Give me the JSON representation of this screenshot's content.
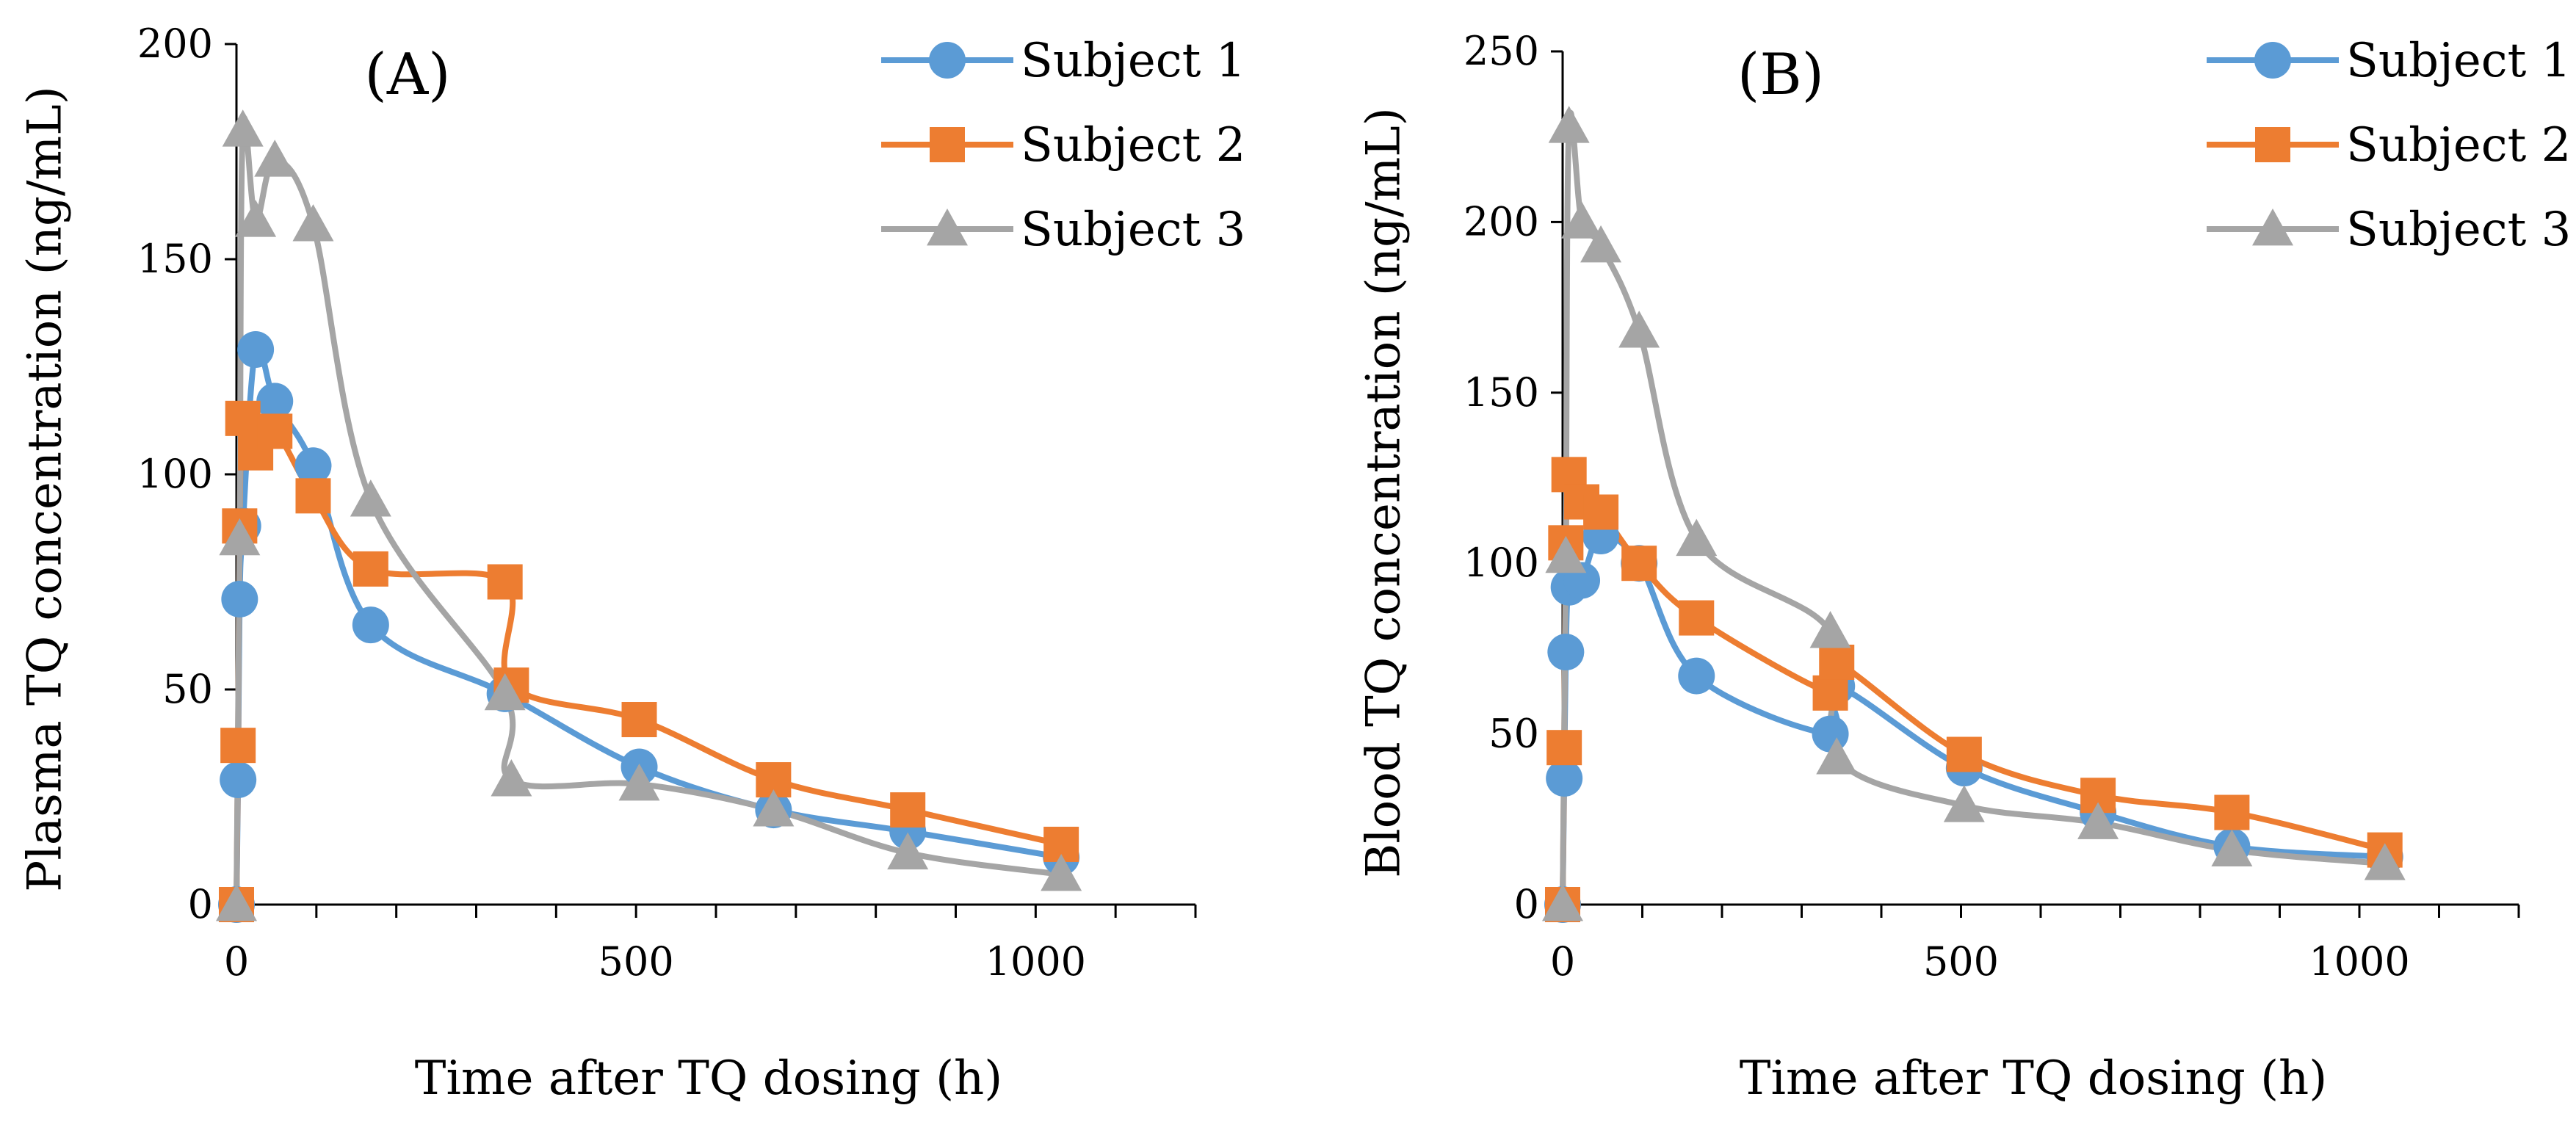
{
  "colors": {
    "subject1": "#5B9BD5",
    "subject2": "#ED7D31",
    "subject3": "#A5A5A5",
    "axis": "#000000"
  },
  "chart_data": [
    {
      "panel": "A",
      "type": "line",
      "title": "(A)",
      "xlabel": "Time after TQ dosing (h)",
      "ylabel": "Plasma TQ concentration (ng/mL)",
      "xlim": [
        0,
        1200
      ],
      "ylim": [
        0,
        200
      ],
      "xticks": [
        0,
        500,
        1000
      ],
      "yticks": [
        0,
        50,
        100,
        150,
        200
      ],
      "legend": "top-right",
      "grid": false,
      "series": [
        {
          "name": "Subject 1",
          "marker": "circle",
          "x": [
            0,
            2,
            4,
            8,
            24,
            48,
            96,
            168,
            336,
            504,
            672,
            840,
            1032
          ],
          "y": [
            0,
            29,
            71,
            88,
            129,
            117,
            102,
            65,
            49,
            32,
            22,
            17,
            11
          ]
        },
        {
          "name": "Subject 2",
          "marker": "square",
          "x": [
            0,
            2,
            4,
            8,
            24,
            48,
            96,
            168,
            336,
            344,
            504,
            672,
            840,
            1032
          ],
          "y": [
            0,
            37,
            88,
            113,
            105,
            110,
            95,
            78,
            75,
            51,
            43,
            29,
            22,
            14
          ]
        },
        {
          "name": "Subject 3",
          "marker": "triangle",
          "x": [
            0,
            4,
            8,
            24,
            48,
            96,
            168,
            336,
            344,
            504,
            672,
            840,
            1032
          ],
          "y": [
            0,
            85,
            180,
            159,
            173,
            158,
            94,
            49,
            29,
            28,
            22,
            12,
            7
          ]
        }
      ]
    },
    {
      "panel": "B",
      "type": "line",
      "title": "(B)",
      "xlabel": "Time after TQ dosing (h)",
      "ylabel": "Blood TQ concentration (ng/mL)",
      "xlim": [
        0,
        1200
      ],
      "ylim": [
        0,
        250
      ],
      "xticks": [
        0,
        500,
        1000
      ],
      "yticks": [
        0,
        50,
        100,
        150,
        200,
        250
      ],
      "legend": "top-right",
      "grid": false,
      "series": [
        {
          "name": "Subject 1",
          "marker": "circle",
          "x": [
            0,
            2,
            4,
            8,
            24,
            48,
            96,
            168,
            336,
            344,
            504,
            672,
            840,
            1032
          ],
          "y": [
            0,
            37,
            74,
            93,
            95,
            108,
            100,
            67,
            50,
            64,
            40,
            27,
            17,
            14
          ]
        },
        {
          "name": "Subject 2",
          "marker": "square",
          "x": [
            0,
            2,
            4,
            8,
            24,
            48,
            96,
            168,
            336,
            344,
            504,
            672,
            840,
            1032
          ],
          "y": [
            0,
            46,
            106,
            126,
            118,
            115,
            100,
            84,
            62,
            71,
            44,
            32,
            27,
            16
          ]
        },
        {
          "name": "Subject 3",
          "marker": "triangle",
          "x": [
            0,
            4,
            8,
            24,
            48,
            96,
            168,
            336,
            344,
            504,
            672,
            840,
            1032
          ],
          "y": [
            0,
            102,
            228,
            200,
            193,
            168,
            107,
            80,
            43,
            29,
            24,
            16,
            12
          ]
        }
      ]
    }
  ]
}
